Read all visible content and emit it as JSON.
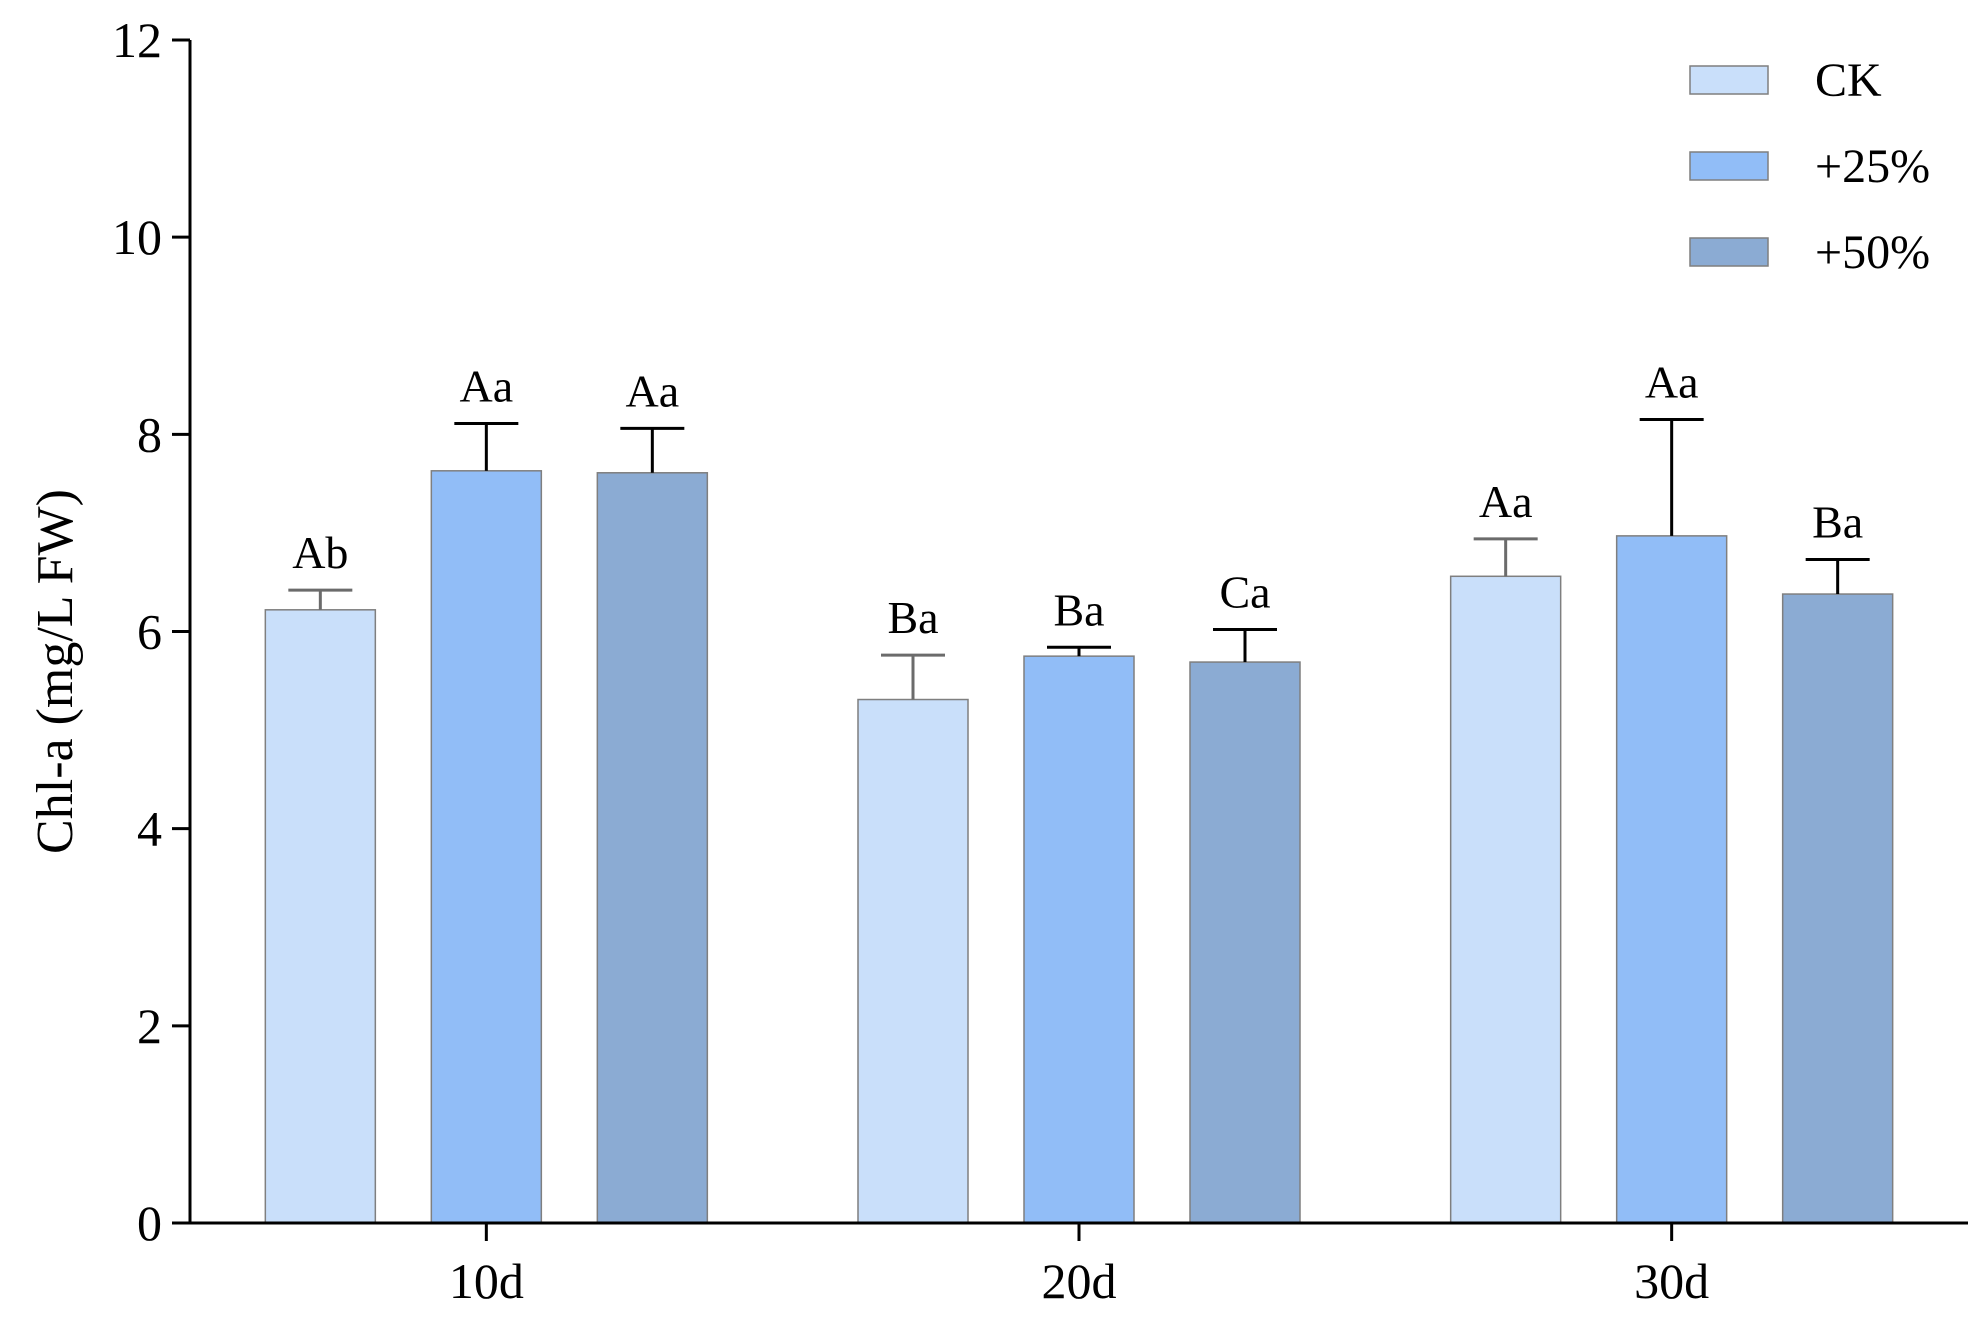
{
  "chart_data": {
    "type": "bar",
    "title": "",
    "xlabel": "",
    "ylabel": "Chl-a (mg/L FW)",
    "ylim": [
      0,
      12
    ],
    "yticks": [
      0,
      2,
      4,
      6,
      8,
      10,
      12
    ],
    "grid": false,
    "legend_position": "top-right",
    "categories": [
      "10d",
      "20d",
      "30d"
    ],
    "series": [
      {
        "name": "CK",
        "color": "#c9dffa",
        "values": [
          6.22,
          5.31,
          6.56
        ],
        "errors": [
          0.2,
          0.45,
          0.38
        ],
        "labels": [
          "Ab",
          "Ba",
          "Aa"
        ]
      },
      {
        "name": "+25%",
        "color": "#91bdf7",
        "values": [
          7.63,
          5.75,
          6.97
        ],
        "errors": [
          0.48,
          0.09,
          1.18
        ],
        "labels": [
          "Aa",
          "Ba",
          "Aa"
        ]
      },
      {
        "name": "+50%",
        "color": "#8babd3",
        "values": [
          7.61,
          5.69,
          6.38
        ],
        "errors": [
          0.45,
          0.33,
          0.35
        ],
        "labels": [
          "Aa",
          "Ca",
          "Ba"
        ]
      }
    ]
  }
}
